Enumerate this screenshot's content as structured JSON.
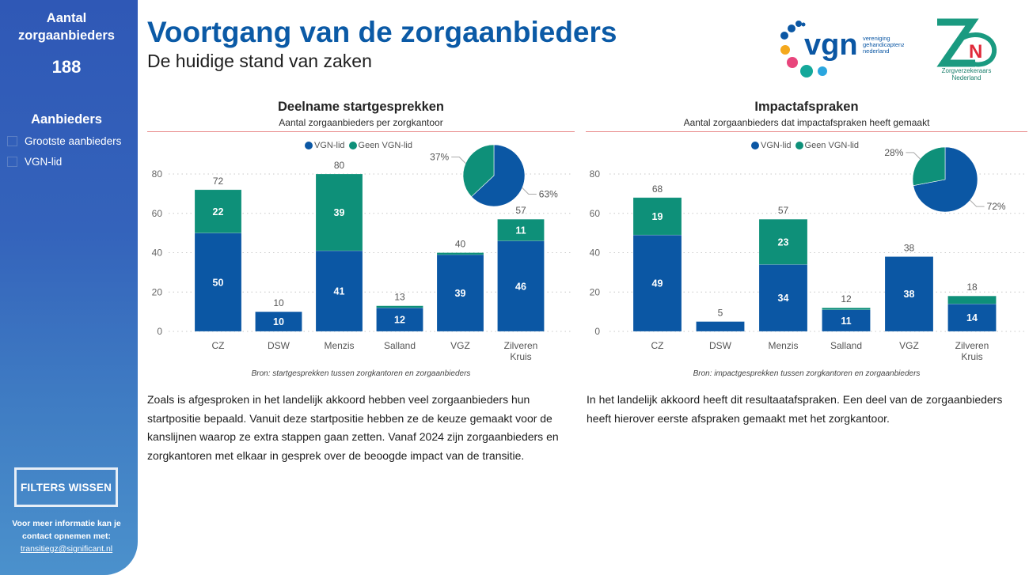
{
  "sidebar": {
    "count_title_line1": "Aantal",
    "count_title_line2": "zorgaanbieders",
    "count_value": "188",
    "filter_title": "Aanbieders",
    "filters": [
      {
        "label": "Grootste aanbieders",
        "checked": false
      },
      {
        "label": "VGN-lid",
        "checked": false
      }
    ],
    "clear_button": "FILTERS WISSEN",
    "info_line1": "Voor meer informatie kan je",
    "info_line2": "contact opnemen met:",
    "info_email": "transitiegz@significant.nl"
  },
  "header": {
    "title": "Voortgang van de zorgaanbieders",
    "subtitle": "De huidige stand van zaken"
  },
  "logos": {
    "vgn": {
      "mark": "vgn",
      "text_line1": "vereniging",
      "text_line2": "gehandicaptenzorg",
      "text_line3": "nederland"
    },
    "zn": {
      "mark": "ZN",
      "text_line1": "Zorgverzekeraars",
      "text_line2": "Nederland"
    }
  },
  "colors": {
    "vgn_lid": "#0b57a4",
    "geen_vgn_lid": "#0e9079",
    "title_blue": "#0b5aa6",
    "rule": "#e98b8b"
  },
  "legend": {
    "vgn_lid": "VGN-lid",
    "geen_vgn_lid": "Geen VGN-lid"
  },
  "chart_data": [
    {
      "type": "bar",
      "stacked": true,
      "title": "Deelname startgesprekken",
      "subtitle": "Aantal zorgaanbieders per zorgkantoor",
      "categories": [
        "CZ",
        "DSW",
        "Menzis",
        "Salland",
        "VGZ",
        "Zilveren Kruis"
      ],
      "series": [
        {
          "name": "VGN-lid",
          "values": [
            50,
            10,
            41,
            12,
            39,
            46
          ]
        },
        {
          "name": "Geen VGN-lid",
          "values": [
            22,
            0,
            39,
            1,
            1,
            11
          ]
        }
      ],
      "totals": [
        72,
        10,
        80,
        13,
        40,
        57
      ],
      "yticks": [
        0,
        20,
        40,
        60,
        80
      ],
      "ylim": [
        0,
        80
      ],
      "grid": true,
      "legend": "top-center",
      "pie": {
        "slices": [
          {
            "name": "VGN-lid",
            "percent": 63
          },
          {
            "name": "Geen VGN-lid",
            "percent": 37
          }
        ]
      },
      "source": "Bron: startgesprekken tussen zorgkantoren en zorgaanbieders"
    },
    {
      "type": "bar",
      "stacked": true,
      "title": "Impactafspraken",
      "subtitle": "Aantal zorgaanbieders dat impactafspraken heeft gemaakt",
      "categories": [
        "CZ",
        "DSW",
        "Menzis",
        "Salland",
        "VGZ",
        "Zilveren Kruis"
      ],
      "series": [
        {
          "name": "VGN-lid",
          "values": [
            49,
            5,
            34,
            11,
            38,
            14
          ]
        },
        {
          "name": "Geen VGN-lid",
          "values": [
            19,
            0,
            23,
            1,
            0,
            4
          ]
        }
      ],
      "totals": [
        68,
        5,
        57,
        12,
        38,
        18
      ],
      "yticks": [
        0,
        20,
        40,
        60,
        80
      ],
      "ylim": [
        0,
        80
      ],
      "grid": true,
      "legend": "top-center",
      "pie": {
        "slices": [
          {
            "name": "VGN-lid",
            "percent": 72
          },
          {
            "name": "Geen VGN-lid",
            "percent": 28
          }
        ]
      },
      "source": "Bron: impactgesprekken tussen zorgkantoren en zorgaanbieders"
    }
  ],
  "texts": {
    "left": "Zoals is afgesproken in het landelijk akkoord hebben veel zorgaanbieders hun startpositie bepaald. Vanuit deze startpositie hebben ze de keuze gemaakt voor de kanslijnen waarop ze extra stappen gaan zetten. Vanaf 2024 zijn zorgaanbieders en zorgkantoren met elkaar in gesprek over de beoogde impact van de transitie.",
    "right": "In het landelijk akkoord heeft dit resultaatafspraken. Een deel van de zorgaanbieders heeft hierover eerste afspraken gemaakt met het zorgkantoor."
  }
}
